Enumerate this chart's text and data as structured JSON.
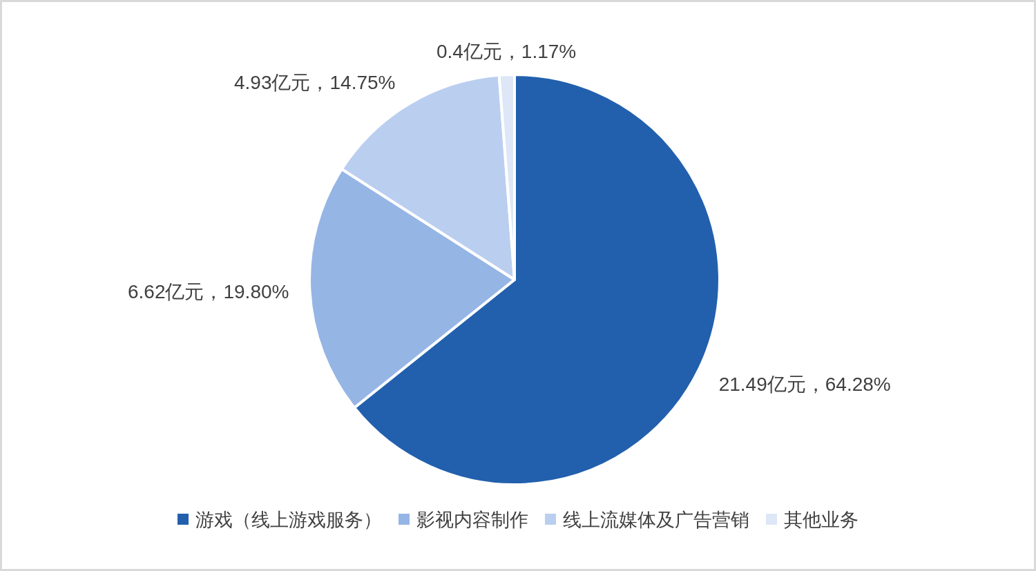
{
  "chart_data": {
    "type": "pie",
    "categories": [
      "游戏（线上游戏服务）",
      "影视内容制作",
      "线上流媒体及广告营销",
      "其他业务"
    ],
    "values": [
      21.49,
      6.62,
      4.93,
      0.4
    ],
    "colors": [
      "#2260ad",
      "#95b5e5",
      "#bacef0",
      "#dde7f7"
    ],
    "value_labels": [
      "21.49亿元，64.28%",
      "6.62亿元，19.80%",
      "4.93亿元，14.75%",
      "0.4亿元，1.17%"
    ],
    "legend": "bottom"
  }
}
